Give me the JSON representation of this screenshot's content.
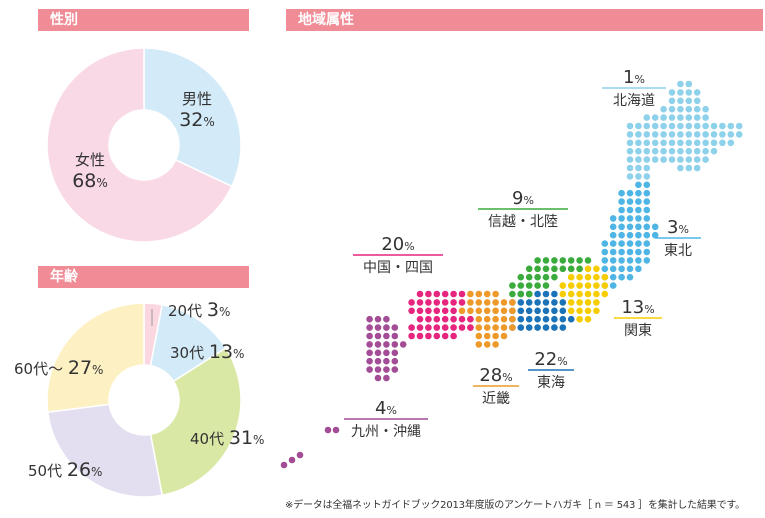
{
  "headers": {
    "gender": "性別",
    "region": "地域属性",
    "age": "年齢"
  },
  "chart_data": [
    {
      "type": "pie",
      "title": "性別",
      "slices": [
        {
          "label": "男性",
          "value": 32,
          "color": "#d3eaf8"
        },
        {
          "label": "女性",
          "value": 68,
          "color": "#f9d9e6"
        }
      ]
    },
    {
      "type": "pie",
      "title": "年齢",
      "slices": [
        {
          "label": "20代",
          "value": 3,
          "color": "#fbd7e1"
        },
        {
          "label": "30代",
          "value": 13,
          "color": "#d3eaf8"
        },
        {
          "label": "40代",
          "value": 31,
          "color": "#dae8a6"
        },
        {
          "label": "50代",
          "value": 26,
          "color": "#e3def0"
        },
        {
          "label": "60代～",
          "value": 27,
          "color": "#fdf1c4"
        }
      ]
    },
    {
      "type": "map",
      "title": "地域属性",
      "regions": [
        {
          "label": "北海道",
          "value": 1,
          "color": "#8ed1ea"
        },
        {
          "label": "東北",
          "value": 3,
          "color": "#4eb5e4"
        },
        {
          "label": "関東",
          "value": 13,
          "color": "#f7cd00"
        },
        {
          "label": "東海",
          "value": 22,
          "color": "#1a72b8"
        },
        {
          "label": "信越・北陸",
          "value": 9,
          "color": "#3aab3c"
        },
        {
          "label": "近畿",
          "value": 28,
          "color": "#ee9a2a"
        },
        {
          "label": "中国・四国",
          "value": 20,
          "color": "#e6257e"
        },
        {
          "label": "九州・沖縄",
          "value": 4,
          "color": "#a24d96"
        }
      ]
    }
  ],
  "footnote": "※データは全福ネットガイドブック2013年度版のアンケートハガキ［ n ＝ 543 ］を集計した結果です。"
}
